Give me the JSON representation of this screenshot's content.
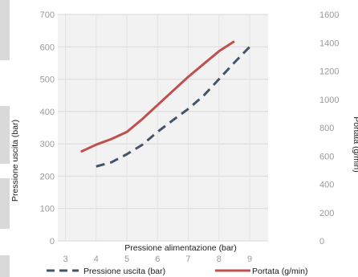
{
  "chart_data": {
    "type": "line",
    "xlabel": "Pressione alimentazione (bar)",
    "ylabel_left": "Pressione uscita (bar)",
    "ylabel_right": "Portata (g/min)",
    "xlim": [
      2.75,
      9.6
    ],
    "ylim_left": [
      0,
      700
    ],
    "ylim_right": [
      0,
      1600
    ],
    "x_ticks": [
      3,
      4,
      5,
      6,
      7,
      8,
      9
    ],
    "y_ticks_left": [
      0,
      100,
      200,
      300,
      400,
      500,
      600,
      700
    ],
    "y_ticks_right": [
      0,
      200,
      400,
      600,
      800,
      1000,
      1200,
      1400,
      1600
    ],
    "grid": true,
    "legend_position": "bottom",
    "series": [
      {
        "name": "Pressione uscita (bar)",
        "axis": "left",
        "color": "#44546a",
        "style": "dashed",
        "x": [
          4,
          4.5,
          5,
          5.5,
          6,
          6.5,
          7,
          7.5,
          8,
          8.5,
          9
        ],
        "y": [
          230,
          243,
          268,
          297,
          337,
          373,
          408,
          449,
          500,
          551,
          600
        ]
      },
      {
        "name": "Portata (g/min)",
        "axis": "right",
        "color": "#c0504d",
        "style": "solid",
        "x": [
          3.5,
          4,
          4.5,
          5,
          5.5,
          6,
          6.5,
          7,
          7.5,
          8,
          8.5
        ],
        "y": [
          630,
          680,
          720,
          770,
          860,
          960,
          1060,
          1160,
          1250,
          1340,
          1410
        ]
      }
    ]
  }
}
